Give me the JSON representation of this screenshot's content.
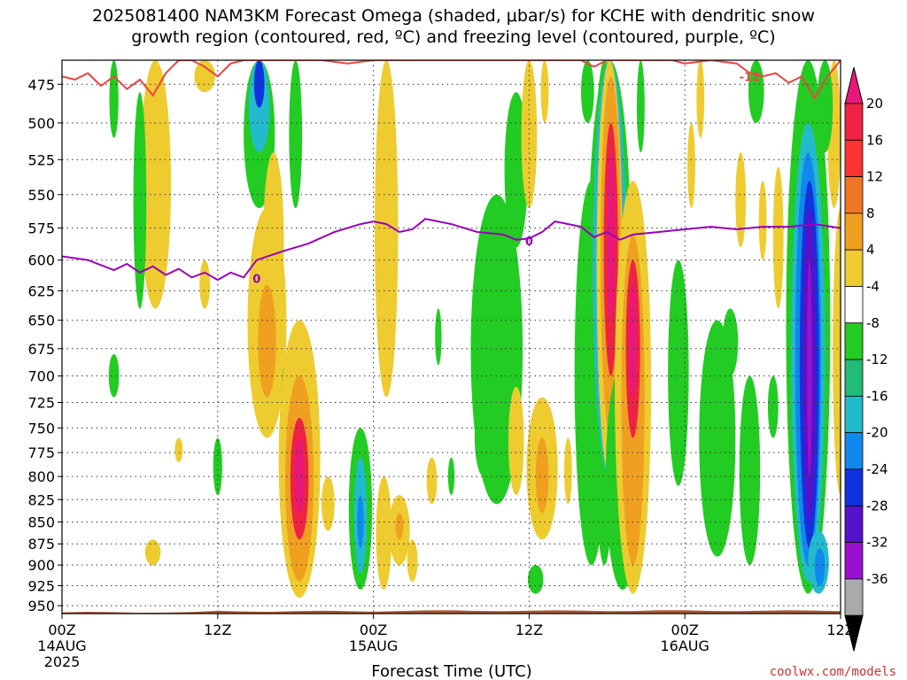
{
  "title": {
    "line1": "2025081400 NAM3KM Forecast Omega (shaded, μbar/s) for KCHE with dendritic snow",
    "line2": "growth region (contoured, red, ºC) and freezing level (contoured, purple, ºC)"
  },
  "credit": "coolwx.com/models",
  "chart_data": {
    "type": "heatmap",
    "title": "2025081400 NAM3KM Forecast Omega (shaded, μbar/s) for KCHE with dendritic snow growth region (contoured, red, ºC) and freezing level (contoured, purple, ºC)",
    "xlabel": "Forecast Time (UTC)",
    "ylabel": "",
    "x_range_hours": [
      0,
      60
    ],
    "y_range_hPa": [
      960,
      460
    ],
    "y_scale": "log-pressure",
    "y_ticks": [
      475,
      500,
      525,
      550,
      575,
      600,
      625,
      650,
      675,
      700,
      725,
      750,
      775,
      800,
      825,
      850,
      875,
      900,
      925,
      950
    ],
    "x_ticks": [
      {
        "hour": 0,
        "label": "00Z",
        "sub": "14AUG",
        "sub2": "2025"
      },
      {
        "hour": 12,
        "label": "12Z",
        "sub": "",
        "sub2": ""
      },
      {
        "hour": 24,
        "label": "00Z",
        "sub": "15AUG",
        "sub2": ""
      },
      {
        "hour": 36,
        "label": "12Z",
        "sub": "",
        "sub2": ""
      },
      {
        "hour": 48,
        "label": "00Z",
        "sub": "16AUG",
        "sub2": ""
      },
      {
        "hour": 60,
        "label": "12Z",
        "sub": "",
        "sub2": ""
      }
    ],
    "grid": true,
    "colorbar": {
      "levels": [
        20,
        16,
        12,
        8,
        4,
        -4,
        -8,
        -12,
        -16,
        -20,
        -24,
        -28,
        -32,
        -36
      ],
      "colors": [
        "#ee2244",
        "#ff3333",
        "#ee7722",
        "#f0a020",
        "#eecc30",
        "#ffffff",
        "#22cc22",
        "#22bb77",
        "#22bbcc",
        "#1188ee",
        "#1133dd",
        "#5511cc",
        "#9911cc",
        "#aaaaaa"
      ],
      "top_color": "#e8187a",
      "bottom_color": "#000000"
    },
    "freezing_level": {
      "name": "0",
      "color": "#9900bb",
      "points": [
        [
          0,
          597
        ],
        [
          2,
          600
        ],
        [
          4,
          608
        ],
        [
          5,
          603
        ],
        [
          6,
          610
        ],
        [
          7,
          605
        ],
        [
          8,
          612
        ],
        [
          9,
          607
        ],
        [
          10,
          614
        ],
        [
          11,
          610
        ],
        [
          12,
          616
        ],
        [
          13,
          610
        ],
        [
          14,
          614
        ],
        [
          15,
          600
        ],
        [
          17,
          593
        ],
        [
          19,
          587
        ],
        [
          21,
          578
        ],
        [
          23,
          572
        ],
        [
          24,
          570
        ],
        [
          25,
          572
        ],
        [
          26,
          578
        ],
        [
          27,
          576
        ],
        [
          28,
          568
        ],
        [
          30,
          572
        ],
        [
          32,
          578
        ],
        [
          34,
          580
        ],
        [
          35,
          584
        ],
        [
          36,
          583
        ],
        [
          37,
          578
        ],
        [
          38,
          570
        ],
        [
          40,
          574
        ],
        [
          41,
          582
        ],
        [
          42,
          578
        ],
        [
          43,
          584
        ],
        [
          44,
          580
        ],
        [
          46,
          578
        ],
        [
          48,
          576
        ],
        [
          50,
          574
        ],
        [
          52,
          576
        ],
        [
          54,
          574
        ],
        [
          56,
          574
        ],
        [
          58,
          572
        ],
        [
          60,
          575
        ]
      ],
      "label_points": [
        [
          15,
          615
        ],
        [
          36,
          585
        ]
      ]
    },
    "dgz_top": {
      "name": "-12",
      "color": "#ee4444",
      "points": [
        [
          0,
          470
        ],
        [
          1,
          472
        ],
        [
          2,
          468
        ],
        [
          3,
          476
        ],
        [
          4,
          470
        ],
        [
          5,
          478
        ],
        [
          6,
          472
        ],
        [
          7,
          482
        ],
        [
          8,
          468
        ],
        [
          9,
          460
        ],
        [
          10,
          460
        ],
        [
          11,
          464
        ],
        [
          12,
          470
        ],
        [
          13,
          462
        ],
        [
          14,
          460
        ],
        [
          20,
          460
        ],
        [
          22,
          462
        ],
        [
          24,
          460
        ],
        [
          40,
          460
        ],
        [
          41,
          464
        ],
        [
          42,
          460
        ],
        [
          47,
          460
        ],
        [
          48,
          462
        ],
        [
          50,
          460
        ],
        [
          52,
          462
        ],
        [
          53,
          468
        ],
        [
          54,
          470
        ],
        [
          55,
          468
        ],
        [
          56,
          474
        ],
        [
          57,
          470
        ],
        [
          58,
          484
        ],
        [
          59,
          470
        ],
        [
          60,
          460
        ]
      ],
      "label_points": [
        [
          53,
          470
        ]
      ]
    },
    "surface": {
      "color": "#aa5533",
      "pressure_hPa": 955
    },
    "omega_blobs": [
      {
        "x": 7.2,
        "y1": 500,
        "y2": 560,
        "w": 0.8,
        "color": "#f0a020"
      },
      {
        "x": 7.2,
        "y1": 460,
        "y2": 640,
        "w": 1.2,
        "color": "#eecc30"
      },
      {
        "x": 4.0,
        "y1": 460,
        "y2": 510,
        "w": 0.35,
        "color": "#22cc22"
      },
      {
        "x": 6.0,
        "y1": 480,
        "y2": 640,
        "w": 0.5,
        "color": "#22cc22"
      },
      {
        "x": 4.0,
        "y1": 680,
        "y2": 720,
        "w": 0.4,
        "color": "#22cc22"
      },
      {
        "x": 11.0,
        "y1": 460,
        "y2": 480,
        "w": 0.8,
        "color": "#eecc30"
      },
      {
        "x": 15.2,
        "y1": 460,
        "y2": 560,
        "w": 1.2,
        "color": "#22cc22"
      },
      {
        "x": 15.2,
        "y1": 460,
        "y2": 520,
        "w": 0.8,
        "color": "#22bbcc"
      },
      {
        "x": 15.2,
        "y1": 460,
        "y2": 490,
        "w": 0.4,
        "color": "#1133dd"
      },
      {
        "x": 16.3,
        "y1": 520,
        "y2": 660,
        "w": 0.8,
        "color": "#eecc30"
      },
      {
        "x": 15.8,
        "y1": 560,
        "y2": 760,
        "w": 1.5,
        "color": "#eecc30"
      },
      {
        "x": 15.8,
        "y1": 620,
        "y2": 720,
        "w": 0.7,
        "color": "#f0a020"
      },
      {
        "x": 11.0,
        "y1": 600,
        "y2": 640,
        "w": 0.4,
        "color": "#eecc30"
      },
      {
        "x": 18.0,
        "y1": 460,
        "y2": 560,
        "w": 0.5,
        "color": "#22cc22"
      },
      {
        "x": 17.2,
        "y1": 690,
        "y2": 760,
        "w": 0.3,
        "color": "#22cc22"
      },
      {
        "x": 18.3,
        "y1": 650,
        "y2": 940,
        "w": 1.6,
        "color": "#eecc30"
      },
      {
        "x": 18.3,
        "y1": 700,
        "y2": 920,
        "w": 1.1,
        "color": "#f0a020"
      },
      {
        "x": 18.3,
        "y1": 740,
        "y2": 870,
        "w": 0.7,
        "color": "#ee2244"
      },
      {
        "x": 18.3,
        "y1": 760,
        "y2": 840,
        "w": 0.35,
        "color": "#e8187a"
      },
      {
        "x": 12.0,
        "y1": 760,
        "y2": 820,
        "w": 0.35,
        "color": "#22cc22"
      },
      {
        "x": 9.0,
        "y1": 760,
        "y2": 785,
        "w": 0.3,
        "color": "#eecc30"
      },
      {
        "x": 7.0,
        "y1": 870,
        "y2": 900,
        "w": 0.6,
        "color": "#eecc30"
      },
      {
        "x": 20.5,
        "y1": 800,
        "y2": 860,
        "w": 0.5,
        "color": "#eecc30"
      },
      {
        "x": 23.0,
        "y1": 750,
        "y2": 930,
        "w": 0.9,
        "color": "#22cc22"
      },
      {
        "x": 23.0,
        "y1": 780,
        "y2": 910,
        "w": 0.5,
        "color": "#22bbcc"
      },
      {
        "x": 23.0,
        "y1": 820,
        "y2": 880,
        "w": 0.25,
        "color": "#1188ee"
      },
      {
        "x": 25.0,
        "y1": 460,
        "y2": 720,
        "w": 0.9,
        "color": "#eecc30"
      },
      {
        "x": 24.8,
        "y1": 800,
        "y2": 930,
        "w": 0.6,
        "color": "#eecc30"
      },
      {
        "x": 26.0,
        "y1": 820,
        "y2": 900,
        "w": 0.8,
        "color": "#eecc30"
      },
      {
        "x": 26.0,
        "y1": 840,
        "y2": 870,
        "w": 0.3,
        "color": "#f0a020"
      },
      {
        "x": 27.0,
        "y1": 870,
        "y2": 920,
        "w": 0.4,
        "color": "#eecc30"
      },
      {
        "x": 28.5,
        "y1": 780,
        "y2": 830,
        "w": 0.4,
        "color": "#eecc30"
      },
      {
        "x": 29.0,
        "y1": 640,
        "y2": 690,
        "w": 0.25,
        "color": "#22cc22"
      },
      {
        "x": 30.0,
        "y1": 780,
        "y2": 820,
        "w": 0.25,
        "color": "#22cc22"
      },
      {
        "x": 33.5,
        "y1": 550,
        "y2": 830,
        "w": 2.0,
        "color": "#22cc22"
      },
      {
        "x": 32.5,
        "y1": 720,
        "y2": 800,
        "w": 0.7,
        "color": "#22cc22"
      },
      {
        "x": 35.0,
        "y1": 480,
        "y2": 590,
        "w": 0.9,
        "color": "#22cc22"
      },
      {
        "x": 36.0,
        "y1": 460,
        "y2": 560,
        "w": 0.6,
        "color": "#eecc30"
      },
      {
        "x": 37.2,
        "y1": 460,
        "y2": 500,
        "w": 0.3,
        "color": "#eecc30"
      },
      {
        "x": 35.0,
        "y1": 710,
        "y2": 820,
        "w": 0.6,
        "color": "#eecc30"
      },
      {
        "x": 37.0,
        "y1": 720,
        "y2": 870,
        "w": 1.2,
        "color": "#eecc30"
      },
      {
        "x": 37.0,
        "y1": 760,
        "y2": 840,
        "w": 0.5,
        "color": "#f0a020"
      },
      {
        "x": 36.5,
        "y1": 900,
        "y2": 935,
        "w": 0.6,
        "color": "#22cc22"
      },
      {
        "x": 39.0,
        "y1": 760,
        "y2": 830,
        "w": 0.3,
        "color": "#eecc30"
      },
      {
        "x": 40.5,
        "y1": 460,
        "y2": 500,
        "w": 0.5,
        "color": "#22cc22"
      },
      {
        "x": 40.8,
        "y1": 540,
        "y2": 900,
        "w": 1.3,
        "color": "#22cc22"
      },
      {
        "x": 41.8,
        "y1": 460,
        "y2": 900,
        "w": 1.0,
        "color": "#22cc22"
      },
      {
        "x": 42.2,
        "y1": 460,
        "y2": 840,
        "w": 1.7,
        "color": "#22cc22"
      },
      {
        "x": 42.2,
        "y1": 460,
        "y2": 800,
        "w": 1.3,
        "color": "#22bbcc"
      },
      {
        "x": 42.2,
        "y1": 460,
        "y2": 800,
        "w": 1.0,
        "color": "#eecc30"
      },
      {
        "x": 42.3,
        "y1": 470,
        "y2": 760,
        "w": 0.8,
        "color": "#f0a020"
      },
      {
        "x": 42.3,
        "y1": 500,
        "y2": 700,
        "w": 0.55,
        "color": "#ee2244"
      },
      {
        "x": 42.3,
        "y1": 520,
        "y2": 650,
        "w": 0.3,
        "color": "#e8187a"
      },
      {
        "x": 43.2,
        "y1": 690,
        "y2": 930,
        "w": 1.3,
        "color": "#22cc22"
      },
      {
        "x": 44.0,
        "y1": 540,
        "y2": 935,
        "w": 1.4,
        "color": "#eecc30"
      },
      {
        "x": 44.0,
        "y1": 580,
        "y2": 900,
        "w": 0.9,
        "color": "#f0a020"
      },
      {
        "x": 44.0,
        "y1": 600,
        "y2": 760,
        "w": 0.55,
        "color": "#ee2244"
      },
      {
        "x": 44.0,
        "y1": 620,
        "y2": 720,
        "w": 0.3,
        "color": "#e8187a"
      },
      {
        "x": 44.6,
        "y1": 460,
        "y2": 520,
        "w": 0.3,
        "color": "#22cc22"
      },
      {
        "x": 47.5,
        "y1": 600,
        "y2": 810,
        "w": 0.8,
        "color": "#22cc22"
      },
      {
        "x": 48.5,
        "y1": 500,
        "y2": 560,
        "w": 0.3,
        "color": "#eecc30"
      },
      {
        "x": 49.2,
        "y1": 460,
        "y2": 510,
        "w": 0.3,
        "color": "#eecc30"
      },
      {
        "x": 50.5,
        "y1": 650,
        "y2": 890,
        "w": 1.4,
        "color": "#22cc22"
      },
      {
        "x": 51.5,
        "y1": 640,
        "y2": 700,
        "w": 0.6,
        "color": "#22cc22"
      },
      {
        "x": 52.3,
        "y1": 520,
        "y2": 590,
        "w": 0.4,
        "color": "#eecc30"
      },
      {
        "x": 53.5,
        "y1": 460,
        "y2": 500,
        "w": 0.6,
        "color": "#22cc22"
      },
      {
        "x": 53.0,
        "y1": 700,
        "y2": 900,
        "w": 0.8,
        "color": "#22cc22"
      },
      {
        "x": 54.0,
        "y1": 540,
        "y2": 600,
        "w": 0.3,
        "color": "#eecc30"
      },
      {
        "x": 55.2,
        "y1": 530,
        "y2": 640,
        "w": 0.4,
        "color": "#eecc30"
      },
      {
        "x": 54.8,
        "y1": 700,
        "y2": 760,
        "w": 0.4,
        "color": "#22cc22"
      },
      {
        "x": 57.5,
        "y1": 460,
        "y2": 935,
        "w": 1.7,
        "color": "#22cc22"
      },
      {
        "x": 57.5,
        "y1": 500,
        "y2": 920,
        "w": 1.3,
        "color": "#22bbcc"
      },
      {
        "x": 57.5,
        "y1": 520,
        "y2": 900,
        "w": 1.0,
        "color": "#1188ee"
      },
      {
        "x": 57.6,
        "y1": 540,
        "y2": 880,
        "w": 0.75,
        "color": "#1133dd"
      },
      {
        "x": 57.6,
        "y1": 560,
        "y2": 850,
        "w": 0.5,
        "color": "#5511cc"
      },
      {
        "x": 57.6,
        "y1": 600,
        "y2": 800,
        "w": 0.2,
        "color": "#9911cc"
      },
      {
        "x": 58.3,
        "y1": 860,
        "y2": 935,
        "w": 0.8,
        "color": "#22bbcc"
      },
      {
        "x": 58.4,
        "y1": 880,
        "y2": 925,
        "w": 0.4,
        "color": "#1188ee"
      },
      {
        "x": 59.5,
        "y1": 460,
        "y2": 560,
        "w": 0.5,
        "color": "#eecc30"
      },
      {
        "x": 60.0,
        "y1": 560,
        "y2": 820,
        "w": 0.6,
        "color": "#eecc30"
      },
      {
        "x": 58.8,
        "y1": 460,
        "y2": 520,
        "w": 0.6,
        "color": "#22cc22"
      }
    ]
  }
}
